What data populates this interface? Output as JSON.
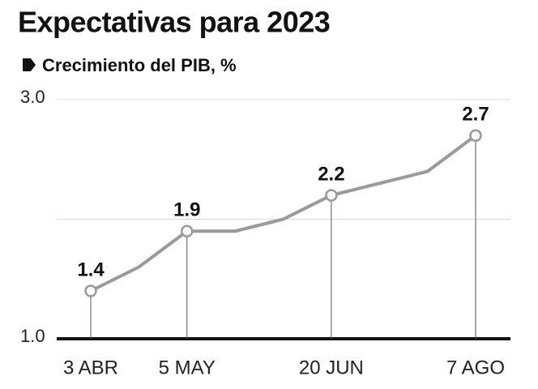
{
  "chart_data": {
    "type": "line",
    "title": "Expectativas para 2023",
    "subtitle": "Crecimiento del PIB, %",
    "categories": [
      "3 ABR",
      null,
      "5 MAY",
      null,
      null,
      "20 JUN",
      null,
      null,
      "7 AGO"
    ],
    "series": [
      {
        "name": "Crecimiento del PIB",
        "color": "#9a9a9a",
        "values": [
          1.4,
          1.6,
          1.9,
          1.9,
          2.0,
          2.2,
          2.3,
          2.4,
          2.7
        ]
      }
    ],
    "ylim": [
      1.0,
      3.0
    ],
    "yticks": [
      {
        "value": 1.0,
        "label": "1.0"
      },
      {
        "value": 3.0,
        "label": "3.0"
      }
    ],
    "minor_yticks": [
      2.0
    ],
    "grid": true
  }
}
